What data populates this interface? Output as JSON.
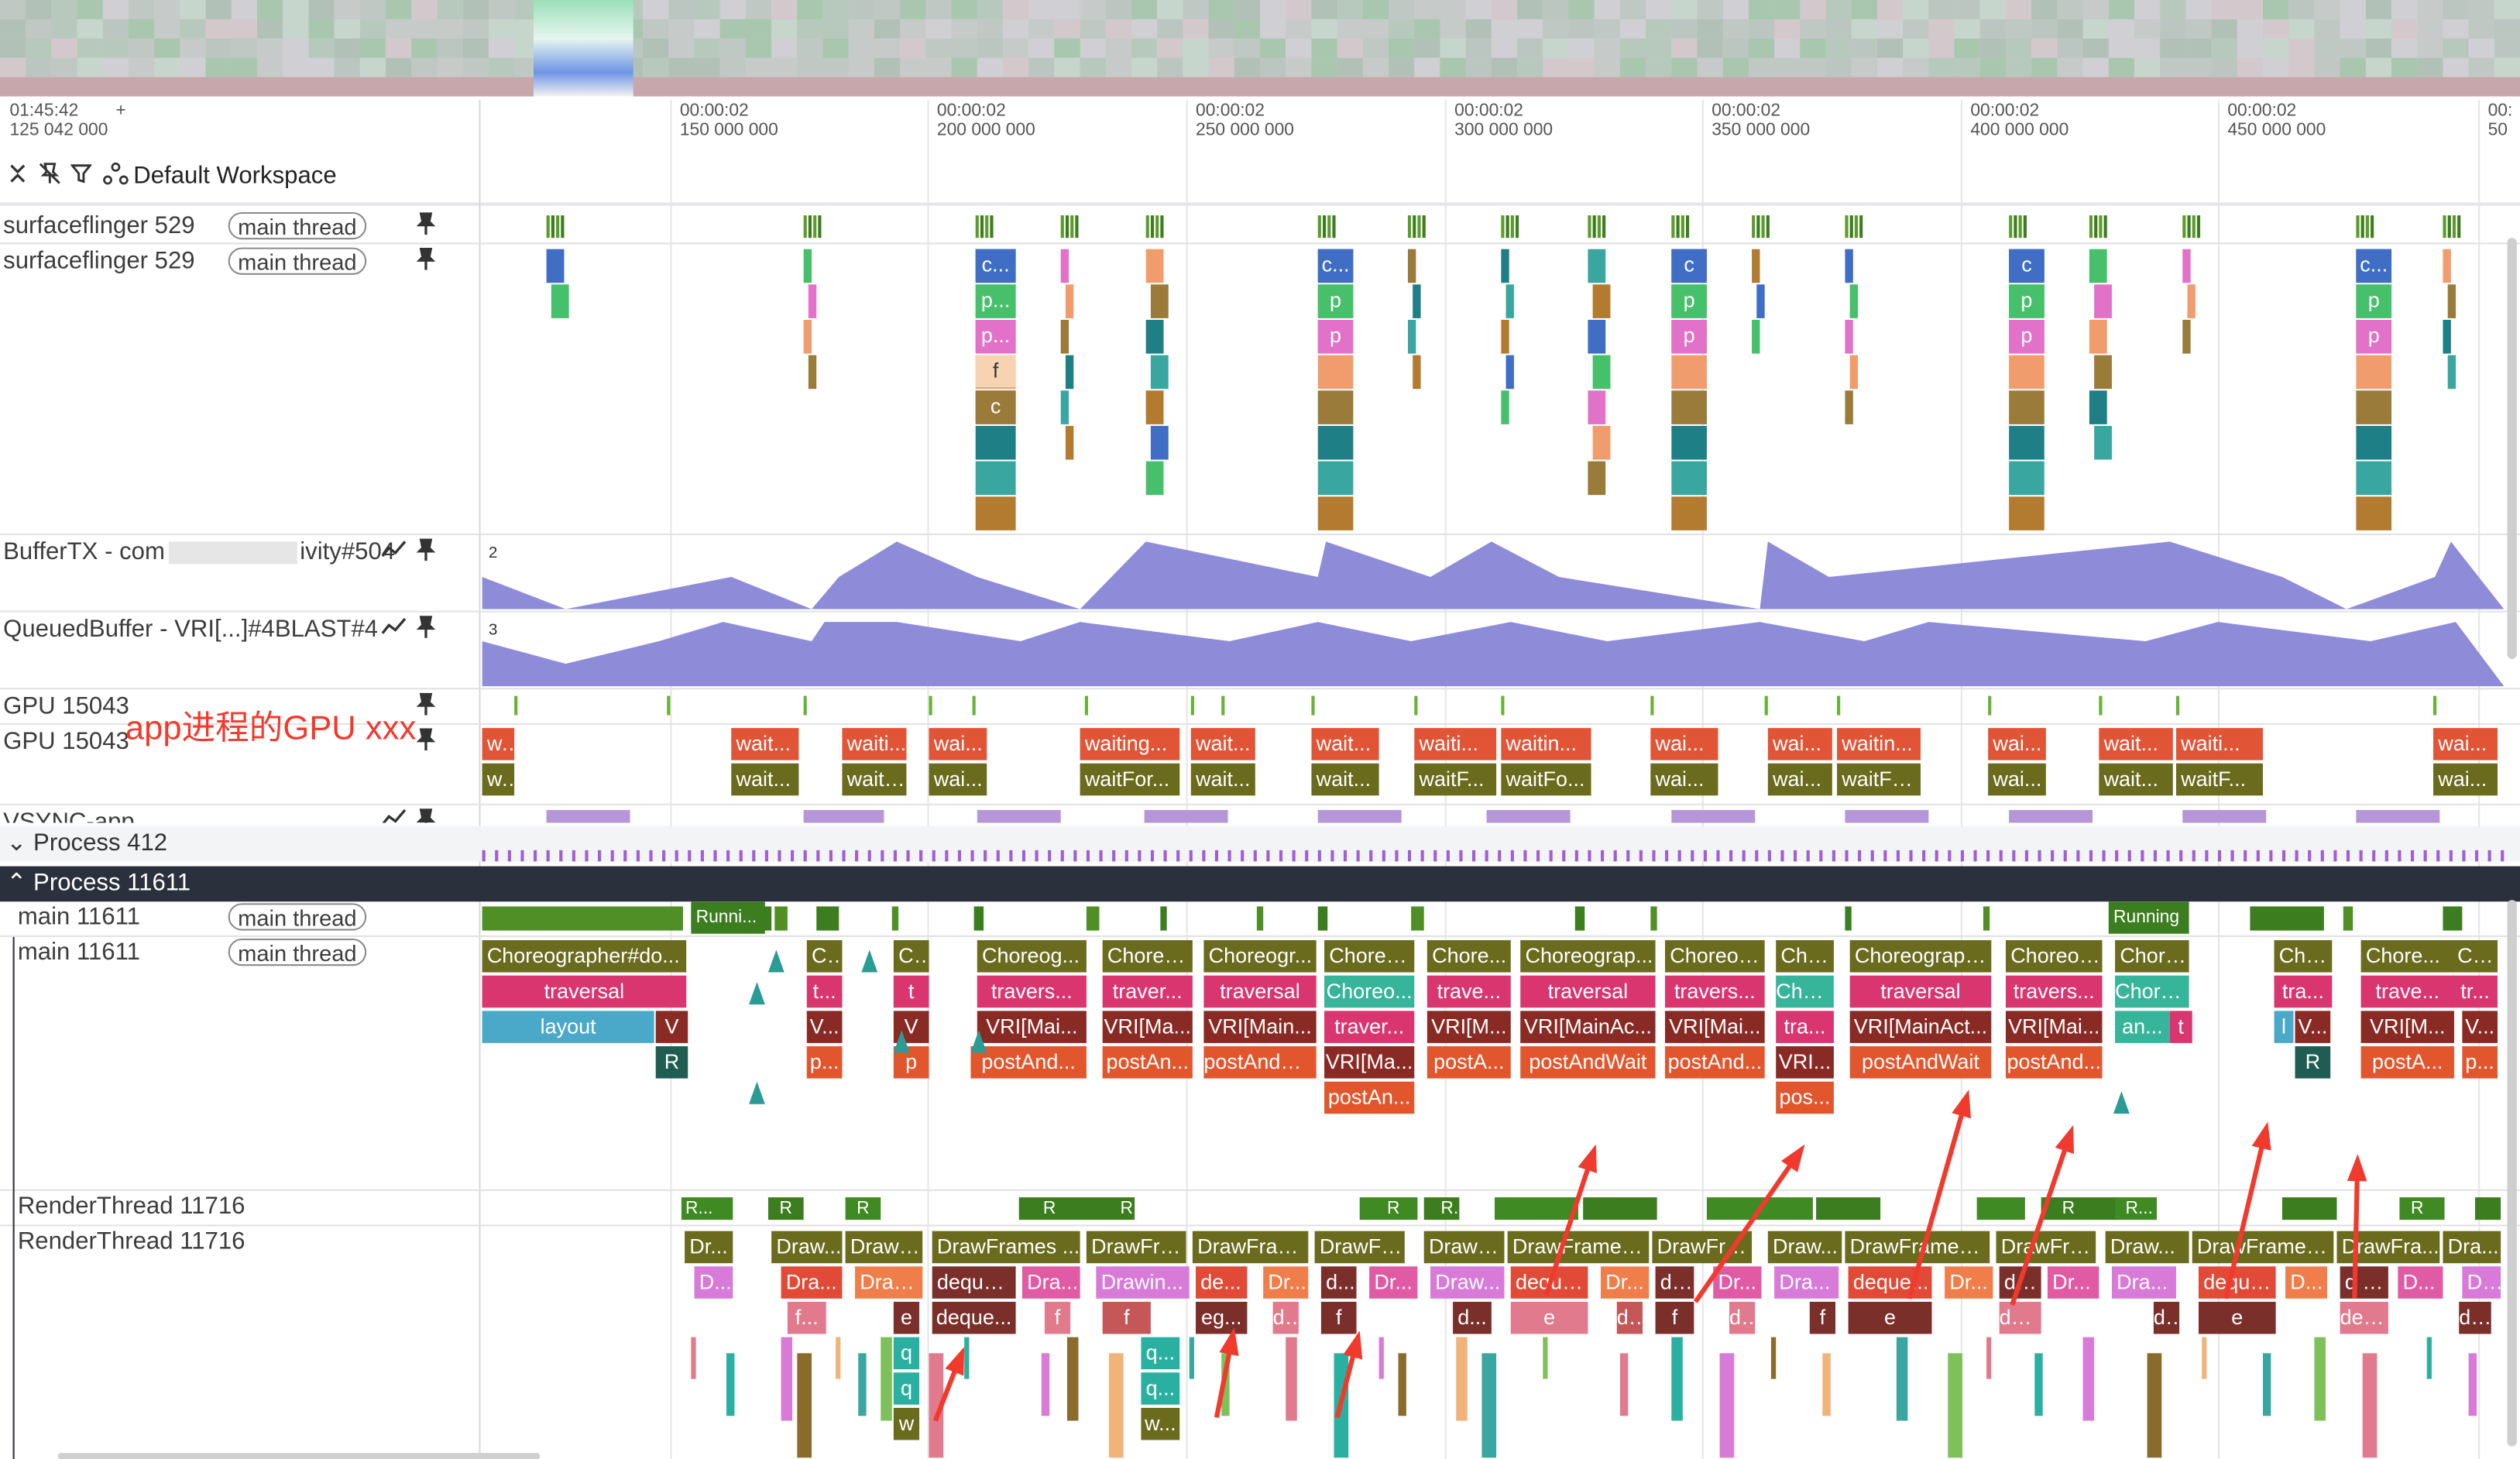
{
  "header": {
    "start_time_line1": "01:45:42",
    "start_time_line2": "125 042 000",
    "plus": "+",
    "workspace_label": "Default Workspace",
    "ticks": [
      {
        "l1": "00:00:02",
        "l2": "150 000 000"
      },
      {
        "l1": "00:00:02",
        "l2": "200 000 000"
      },
      {
        "l1": "00:00:02",
        "l2": "250 000 000"
      },
      {
        "l1": "00:00:02",
        "l2": "300 000 000"
      },
      {
        "l1": "00:00:02",
        "l2": "350 000 000"
      },
      {
        "l1": "00:00:02",
        "l2": "400 000 000"
      },
      {
        "l1": "00:00:02",
        "l2": "450 000 000"
      },
      {
        "l1": "00:",
        "l2": "50"
      }
    ]
  },
  "tracks": {
    "sf1": {
      "name": "surfaceflinger 529",
      "chip": "main thread"
    },
    "sf2": {
      "name": "surfaceflinger 529",
      "chip": "main thread"
    },
    "buffertx": {
      "name": "BufferTX - com",
      "name_tail": "ivity#504",
      "scale": "2"
    },
    "queued": {
      "name": "QueuedBuffer - VRI[...",
      "name_tail": "]#4BLAST#4",
      "scale": "3"
    },
    "gpu1": {
      "name": "GPU 15043"
    },
    "gpu2": {
      "name": "GPU 15043"
    },
    "gpu_annotation": "app进程的GPU xxx",
    "vsync": {
      "name": "VSYNC-app"
    },
    "process412": "Process 412",
    "process11611": "Process 11611",
    "main1": {
      "name": "main 11611",
      "chip": "main thread"
    },
    "main2": {
      "name": "main 11611",
      "chip": "main thread"
    },
    "rt1": {
      "name": "RenderThread 11716"
    },
    "rt2": {
      "name": "RenderThread 11716"
    }
  },
  "icons": [
    "collapse-icon",
    "unpin-icon",
    "filter-icon",
    "workspace-icon",
    "pin-icon",
    "chart-icon",
    "chevron-down-icon",
    "chevron-up-icon"
  ],
  "colors": {
    "counter": "#8e8bd8",
    "olive": "#6b6b1d",
    "dark_green": "#3c7d1f",
    "red": "#e25436",
    "pink": "#d9356f",
    "teal": "#4aa8c9",
    "purple": "#a060d0",
    "arrow": "#f03a2e"
  },
  "sf_labels": [
    "c...",
    "p...",
    "p...",
    "f",
    "c",
    "c...",
    "p",
    "p",
    "c",
    "p",
    "p",
    "c",
    "p",
    "p",
    "c...",
    "p",
    "p"
  ],
  "gpu_top": [
    "w...",
    "wait...",
    "waiti...",
    "wai...",
    "waiting...",
    "wait...",
    "wait...",
    "waiti...",
    "waitin...",
    "wai...",
    "wai...",
    "waitin...",
    "wai...",
    "wait...",
    "waiti...",
    "wai..."
  ],
  "gpu_bot": [
    "w...",
    "wait...",
    "waitF...",
    "wai...",
    "waitFor...",
    "wait...",
    "wait...",
    "waitF...",
    "waitFo...",
    "wai...",
    "wai...",
    "waitFo...",
    "wai...",
    "wait...",
    "waitF...",
    "wai..."
  ],
  "main_row1": [
    "Choreographer#do...",
    "C...",
    "C...",
    "Choreog...",
    "Choreo...",
    "Choreogr...",
    "Choreo...",
    "Chore...",
    "Choreograp...",
    "Choreog...",
    "Chor...",
    "Choreograph...",
    "Choreog...",
    "Chore...",
    "Cho...",
    "Chore...",
    "Ch..."
  ],
  "main_row2": [
    "traversal",
    "t...",
    "t",
    "travers...",
    "traver...",
    "traversal",
    "Choreo...",
    "trave...",
    "traversal",
    "travers...",
    "Chor...",
    "traversal",
    "travers...",
    "Chore...",
    "tra...",
    "trave...",
    "tr..."
  ],
  "main_row3": [
    "layout",
    "V",
    "V...",
    "V",
    "VRI[Mai...",
    "VRI[Ma...",
    "VRI[Main...",
    "traver...",
    "VRI[M...",
    "VRI[MainAc...",
    "VRI[Mai...",
    "tra...",
    "VRI[MainAct...",
    "VRI[Mai...",
    "an...",
    "t",
    "l",
    "V...",
    "VRI[M...",
    "V..."
  ],
  "main_row4": [
    "R",
    "p...",
    "p",
    "postAnd...",
    "postAn...",
    "postAndW...",
    "VRI[Ma...",
    "postA...",
    "postAndWait",
    "postAnd...",
    "VRI...",
    "postAndWait",
    "postAnd...",
    "R",
    "postA...",
    "p..."
  ],
  "main_row5": [
    "postAn...",
    "pos..."
  ],
  "running_labels": [
    "Runni...",
    "Running"
  ],
  "rt_state_labels": [
    "R...",
    "R",
    "R",
    "R",
    "R",
    "Ru...",
    "R",
    "R...",
    "R",
    "R...",
    "R"
  ],
  "rt_row1": [
    "Dr...",
    "Draw...",
    "DrawF...",
    "DrawFrames ...",
    "DrawFra...",
    "DrawFram...",
    "DrawFra...",
    "DrawF...",
    "DrawFrames ...",
    "DrawFra...",
    "Draw...",
    "DrawFrames ...",
    "DrawFra...",
    "Draw...",
    "DrawFrames...",
    "DrawFra...",
    "Dra..."
  ],
  "rt_row2": [
    "D...",
    "Dra...",
    "Draw...",
    "dequeu...",
    "Dra...",
    "Drawin...",
    "de...",
    "Dr...",
    "d...",
    "Dr...",
    "Draw...",
    "deque...",
    "Dr...",
    "de...",
    "Dr...",
    "Dra...",
    "deque...",
    "Dr...",
    "de...",
    "Dr...",
    "Dra...",
    "deque...",
    "D...",
    "d q...",
    "D...",
    "Dr..."
  ],
  "rt_row3": [
    "f...",
    "e",
    "deque...",
    "f",
    "f",
    "eg...",
    "de...",
    "f",
    "d...",
    "e",
    "deque...",
    "f",
    "de...",
    "f",
    "e",
    "dequeu...",
    "de...",
    "e",
    "deque...",
    "deq..."
  ],
  "rt_row4": [
    "q",
    "q...",
    "q",
    "q...",
    "w",
    "w..."
  ]
}
